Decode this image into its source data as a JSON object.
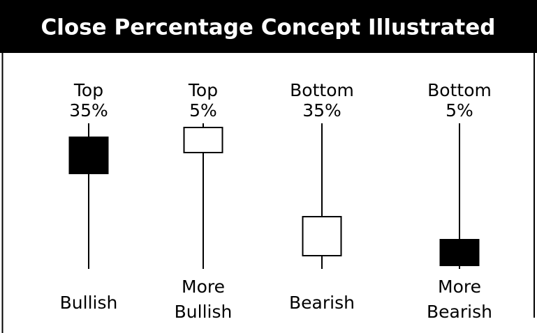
{
  "title": "Close Percentage Concept Illustrated",
  "candles": [
    {
      "top": [
        "Top",
        "35%"
      ],
      "bottom": [
        "Bullish"
      ]
    },
    {
      "top": [
        "Top",
        "5%"
      ],
      "bottom": [
        "More",
        "Bullish"
      ]
    },
    {
      "top": [
        "Bottom",
        "35%"
      ],
      "bottom": [
        "Bearish"
      ]
    },
    {
      "top": [
        "Bottom",
        "5%"
      ],
      "bottom": [
        "More",
        "Bearish"
      ]
    }
  ]
}
